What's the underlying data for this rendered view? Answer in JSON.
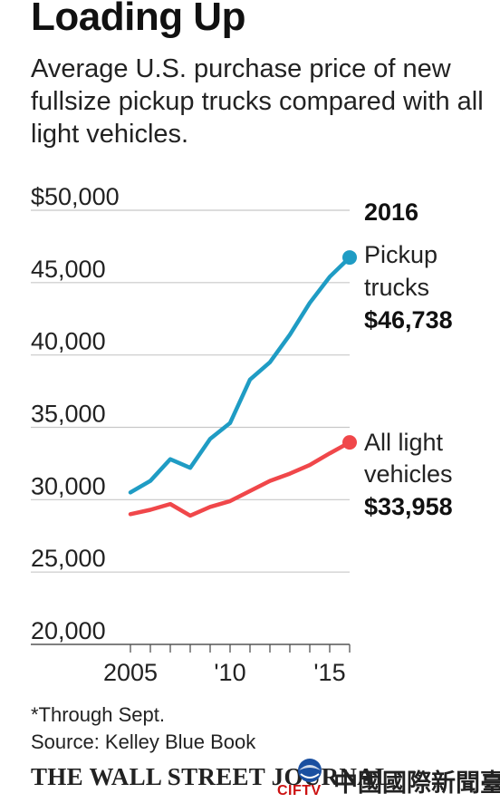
{
  "title": "Loading Up",
  "subtitle": "Average U.S. purchase price of new fullsize pickup trucks compared with all light vehicles.",
  "footnote": "*Through Sept.",
  "source": "Source: Kelley Blue Book",
  "publisher": "THE WALL STREET JOURNAL",
  "watermark": {
    "text": "中國國際新聞臺",
    "logo_text": "CIFTV"
  },
  "chart_data": {
    "type": "line",
    "x": [
      2005,
      2006,
      2007,
      2008,
      2009,
      2010,
      2011,
      2012,
      2013,
      2014,
      2015,
      2016
    ],
    "series": [
      {
        "name": "Pickup trucks",
        "color": "#1f9cc4",
        "values": [
          30500,
          31300,
          32800,
          32200,
          34200,
          35300,
          38300,
          39500,
          41400,
          43600,
          45400,
          46738
        ],
        "end_label": [
          "Pickup",
          "trucks"
        ],
        "end_value": "$46,738"
      },
      {
        "name": "All light vehicles",
        "color": "#f0474a",
        "values": [
          29000,
          29300,
          29700,
          28900,
          29500,
          29900,
          30600,
          31300,
          31800,
          32400,
          33200,
          33958
        ],
        "end_label": [
          "All light",
          "vehicles"
        ],
        "end_value": "$33,958"
      }
    ],
    "end_year_label": "2016",
    "ylim": [
      20000,
      50000
    ],
    "yticks": [
      50000,
      45000,
      40000,
      35000,
      30000,
      25000,
      20000
    ],
    "ytick_labels": [
      "$50,000",
      "45,000",
      "40,000",
      "35,000",
      "30,000",
      "25,000",
      "20,000"
    ],
    "xticks": [
      2005,
      2010,
      2015
    ],
    "xtick_labels": [
      "2005",
      "'10",
      "'15"
    ],
    "minor_xticks": [
      2005,
      2006,
      2007,
      2008,
      2009,
      2010,
      2011,
      2012,
      2013,
      2014,
      2015,
      2016
    ],
    "grid": true,
    "xlabel": "",
    "ylabel": ""
  }
}
